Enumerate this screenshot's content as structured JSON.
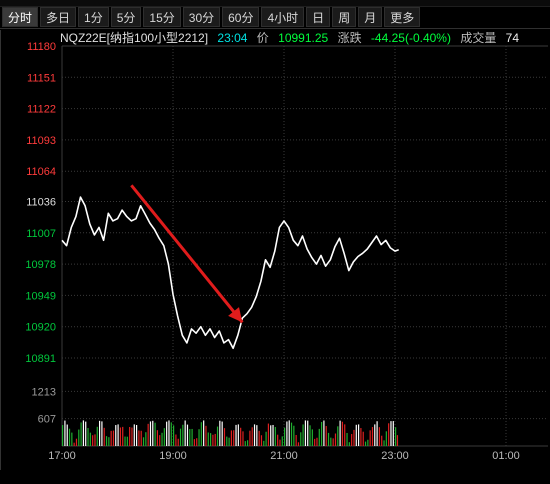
{
  "tabs": [
    "分时",
    "多日",
    "1分",
    "5分",
    "15分",
    "30分",
    "60分",
    "4小时",
    "日",
    "周",
    "月",
    "更多"
  ],
  "active_tab": 0,
  "quote": {
    "symbol": "NQZ22E[纳指100小型2212]",
    "time": "23:04",
    "price_label": "价",
    "price": "10991.25",
    "change_label": "涨跌",
    "change": "-44.25(-0.40%)",
    "volume_label": "成交量",
    "volume": "74"
  },
  "colors": {
    "price_axis_up": "#ff3b3b",
    "price_axis_down": "#00c83c",
    "line": "#ffffff",
    "arrow": "#e01c1c",
    "vol_up": "#e02020",
    "vol_down": "#20b030",
    "vol_flat": "#ffffff",
    "grid": "#3a3a3a",
    "axis_text": "#9a9a9a"
  },
  "chart_data": {
    "type": "line",
    "price_ticks": [
      11180,
      11151,
      11122,
      11093,
      11064,
      11036,
      11007,
      10978,
      10949,
      10920,
      10891
    ],
    "ref_price": 11036,
    "volume_ticks": [
      1213,
      607
    ],
    "volume_range": [
      0,
      1820
    ],
    "x_ticks": [
      "17:00",
      "19:00",
      "21:00",
      "23:00",
      "01:00"
    ],
    "price_series": [
      [
        "17:00",
        11000
      ],
      [
        "17:05",
        10995
      ],
      [
        "17:10",
        11012
      ],
      [
        "17:15",
        11022
      ],
      [
        "17:20",
        11040
      ],
      [
        "17:25",
        11032
      ],
      [
        "17:30",
        11015
      ],
      [
        "17:35",
        11005
      ],
      [
        "17:40",
        11012
      ],
      [
        "17:45",
        11000
      ],
      [
        "17:50",
        11025
      ],
      [
        "17:55",
        11018
      ],
      [
        "18:00",
        11020
      ],
      [
        "18:05",
        11028
      ],
      [
        "18:10",
        11022
      ],
      [
        "18:15",
        11018
      ],
      [
        "18:20",
        11020
      ],
      [
        "18:25",
        11032
      ],
      [
        "18:30",
        11024
      ],
      [
        "18:35",
        11016
      ],
      [
        "18:40",
        11010
      ],
      [
        "18:45",
        11002
      ],
      [
        "18:50",
        10995
      ],
      [
        "18:55",
        10978
      ],
      [
        "19:00",
        10950
      ],
      [
        "19:05",
        10930
      ],
      [
        "19:10",
        10912
      ],
      [
        "19:15",
        10905
      ],
      [
        "19:20",
        10918
      ],
      [
        "19:25",
        10914
      ],
      [
        "19:30",
        10920
      ],
      [
        "19:35",
        10912
      ],
      [
        "19:40",
        10918
      ],
      [
        "19:45",
        10910
      ],
      [
        "19:50",
        10916
      ],
      [
        "19:55",
        10905
      ],
      [
        "20:00",
        10908
      ],
      [
        "20:05",
        10900
      ],
      [
        "20:10",
        10912
      ],
      [
        "20:15",
        10928
      ],
      [
        "20:20",
        10932
      ],
      [
        "20:25",
        10938
      ],
      [
        "20:30",
        10948
      ],
      [
        "20:35",
        10962
      ],
      [
        "20:40",
        10982
      ],
      [
        "20:45",
        10975
      ],
      [
        "20:50",
        10990
      ],
      [
        "20:55",
        11012
      ],
      [
        "21:00",
        11018
      ],
      [
        "21:05",
        11012
      ],
      [
        "21:10",
        11000
      ],
      [
        "21:15",
        10995
      ],
      [
        "21:20",
        11004
      ],
      [
        "21:25",
        10992
      ],
      [
        "21:30",
        10984
      ],
      [
        "21:35",
        10978
      ],
      [
        "21:40",
        10986
      ],
      [
        "21:45",
        10976
      ],
      [
        "21:50",
        10982
      ],
      [
        "21:55",
        10994
      ],
      [
        "22:00",
        11002
      ],
      [
        "22:05",
        10988
      ],
      [
        "22:10",
        10972
      ],
      [
        "22:15",
        10980
      ],
      [
        "22:20",
        10985
      ],
      [
        "22:25",
        10988
      ],
      [
        "22:30",
        10992
      ],
      [
        "22:35",
        10998
      ],
      [
        "22:40",
        11004
      ],
      [
        "22:45",
        10996
      ],
      [
        "22:50",
        11000
      ],
      [
        "22:55",
        10993
      ],
      [
        "23:00",
        10990
      ],
      [
        "23:04",
        10991.25
      ]
    ],
    "annotation_arrow": {
      "from": [
        "18:15",
        11051
      ],
      "to": [
        "20:15",
        10924
      ]
    }
  }
}
